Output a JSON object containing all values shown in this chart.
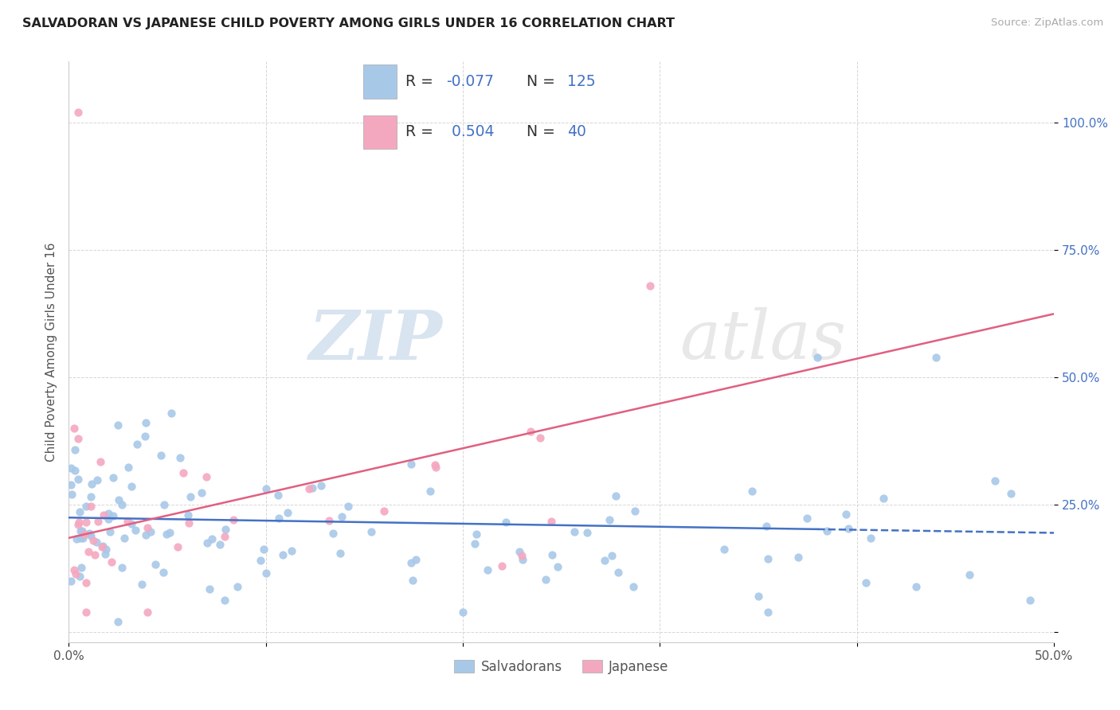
{
  "title": "SALVADORAN VS JAPANESE CHILD POVERTY AMONG GIRLS UNDER 16 CORRELATION CHART",
  "source": "Source: ZipAtlas.com",
  "ylabel": "Child Poverty Among Girls Under 16",
  "xlim": [
    0.0,
    0.5
  ],
  "ylim": [
    -0.02,
    1.12
  ],
  "xticks": [
    0.0,
    0.1,
    0.2,
    0.3,
    0.4,
    0.5
  ],
  "yticks": [
    0.0,
    0.25,
    0.5,
    0.75,
    1.0
  ],
  "xticklabels": [
    "0.0%",
    "",
    "",
    "",
    "",
    "50.0%"
  ],
  "yticklabels": [
    "",
    "25.0%",
    "50.0%",
    "75.0%",
    "100.0%"
  ],
  "salvadoran_color": "#a8c8e8",
  "japanese_color": "#f4a8c0",
  "salvadoran_line_color": "#4472c4",
  "japanese_line_color": "#e06080",
  "watermark_zip": "ZIP",
  "watermark_atlas": "atlas",
  "legend_R_salvadoran": "-0.077",
  "legend_N_salvadoran": "125",
  "legend_R_japanese": "0.504",
  "legend_N_japanese": "40",
  "sal_line_x0": 0.0,
  "sal_line_x1": 0.5,
  "sal_line_y0": 0.225,
  "sal_line_y1": 0.195,
  "sal_line_solid_x1": 0.38,
  "jap_line_x0": 0.0,
  "jap_line_x1": 0.5,
  "jap_line_y0": 0.185,
  "jap_line_y1": 0.625
}
